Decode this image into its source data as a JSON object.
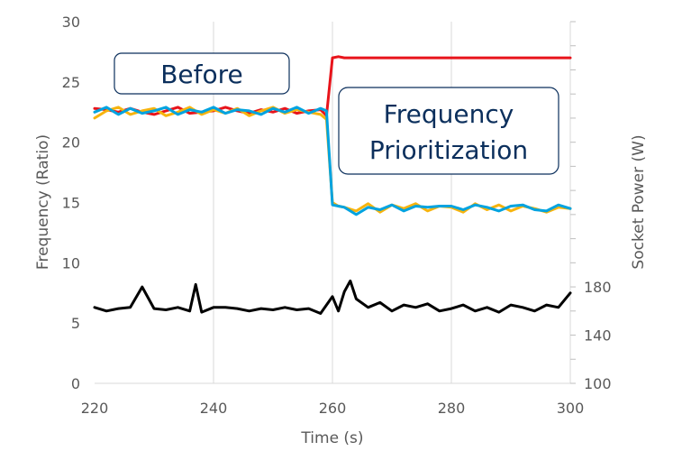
{
  "chart_data": {
    "type": "line",
    "title": "",
    "xlabel": "Time (s)",
    "ylabel": "Frequency (Ratio)",
    "y2label": "Socket Power (W)",
    "xlim": [
      220,
      300
    ],
    "ylim": [
      0,
      30
    ],
    "y2lim": [
      100,
      400
    ],
    "xticks": [
      220,
      240,
      260,
      280,
      300
    ],
    "yticks": [
      0,
      5,
      10,
      15,
      20,
      25,
      30
    ],
    "y2ticks": [
      100,
      140,
      180
    ],
    "grid": "vertical",
    "legend": "none",
    "series": [
      {
        "color": "#e8141b",
        "x": [
          220,
          222,
          224,
          226,
          228,
          230,
          232,
          234,
          236,
          238,
          240,
          242,
          244,
          246,
          248,
          250,
          252,
          254,
          256,
          258,
          259,
          260,
          261,
          262,
          264,
          266,
          268,
          270,
          272,
          274,
          276,
          278,
          280,
          282,
          284,
          286,
          288,
          290,
          292,
          294,
          296,
          298,
          300
        ],
        "y": [
          22.8,
          22.7,
          22.5,
          22.8,
          22.5,
          22.3,
          22.6,
          22.9,
          22.4,
          22.5,
          22.6,
          22.9,
          22.6,
          22.4,
          22.7,
          22.5,
          22.8,
          22.4,
          22.6,
          22.7,
          22.2,
          27.0,
          27.1,
          27.0,
          27.0,
          27.0,
          27.0,
          27.0,
          27.0,
          27.0,
          27.0,
          27.0,
          27.0,
          27.0,
          27.0,
          27.0,
          27.0,
          27.0,
          27.0,
          27.0,
          27.0,
          27.0,
          27.0
        ],
        "axis": "left"
      },
      {
        "color": "#f7b40e",
        "x": [
          220,
          222,
          224,
          226,
          228,
          230,
          232,
          234,
          236,
          238,
          240,
          242,
          244,
          246,
          248,
          250,
          252,
          254,
          256,
          258,
          259,
          260,
          261,
          262,
          264,
          266,
          268,
          270,
          272,
          274,
          276,
          278,
          280,
          282,
          284,
          286,
          288,
          290,
          292,
          294,
          296,
          298,
          300
        ],
        "y": [
          22.0,
          22.6,
          22.9,
          22.3,
          22.6,
          22.8,
          22.2,
          22.5,
          22.9,
          22.3,
          22.7,
          22.4,
          22.8,
          22.2,
          22.6,
          22.9,
          22.4,
          22.7,
          22.5,
          22.3,
          21.9,
          15.0,
          14.7,
          14.6,
          14.3,
          14.9,
          14.2,
          14.8,
          14.5,
          14.9,
          14.3,
          14.7,
          14.6,
          14.2,
          14.9,
          14.4,
          14.8,
          14.3,
          14.7,
          14.5,
          14.2,
          14.6,
          14.5
        ],
        "axis": "left"
      },
      {
        "color": "#00a3e0",
        "x": [
          220,
          222,
          224,
          226,
          228,
          230,
          232,
          234,
          236,
          238,
          240,
          242,
          244,
          246,
          248,
          250,
          252,
          254,
          256,
          258,
          259,
          260,
          261,
          262,
          264,
          266,
          268,
          270,
          272,
          274,
          276,
          278,
          280,
          282,
          284,
          286,
          288,
          290,
          292,
          294,
          296,
          298,
          300
        ],
        "y": [
          22.5,
          22.9,
          22.3,
          22.8,
          22.4,
          22.6,
          22.9,
          22.3,
          22.7,
          22.5,
          22.9,
          22.4,
          22.7,
          22.6,
          22.3,
          22.8,
          22.5,
          22.9,
          22.4,
          22.8,
          22.6,
          14.8,
          14.7,
          14.6,
          14.0,
          14.6,
          14.4,
          14.8,
          14.3,
          14.7,
          14.6,
          14.7,
          14.7,
          14.4,
          14.8,
          14.6,
          14.3,
          14.7,
          14.8,
          14.4,
          14.3,
          14.8,
          14.5
        ],
        "axis": "left"
      },
      {
        "color": "#000000",
        "x": [
          220,
          222,
          224,
          226,
          228,
          230,
          232,
          234,
          236,
          237,
          238,
          240,
          242,
          244,
          246,
          248,
          250,
          252,
          254,
          256,
          258,
          260,
          261,
          262,
          263,
          264,
          266,
          268,
          270,
          272,
          274,
          276,
          278,
          280,
          282,
          284,
          286,
          288,
          290,
          292,
          294,
          296,
          298,
          300
        ],
        "y": [
          163,
          160,
          162,
          163,
          180,
          162,
          161,
          163,
          160,
          182,
          159,
          163,
          163,
          162,
          160,
          162,
          161,
          163,
          161,
          162,
          158,
          172,
          160,
          176,
          185,
          170,
          163,
          167,
          160,
          165,
          163,
          166,
          160,
          162,
          165,
          160,
          163,
          159,
          165,
          163,
          160,
          165,
          163,
          175
        ],
        "axis": "right"
      }
    ],
    "annotations": [
      "Before",
      "Frequency Prioritization"
    ]
  }
}
